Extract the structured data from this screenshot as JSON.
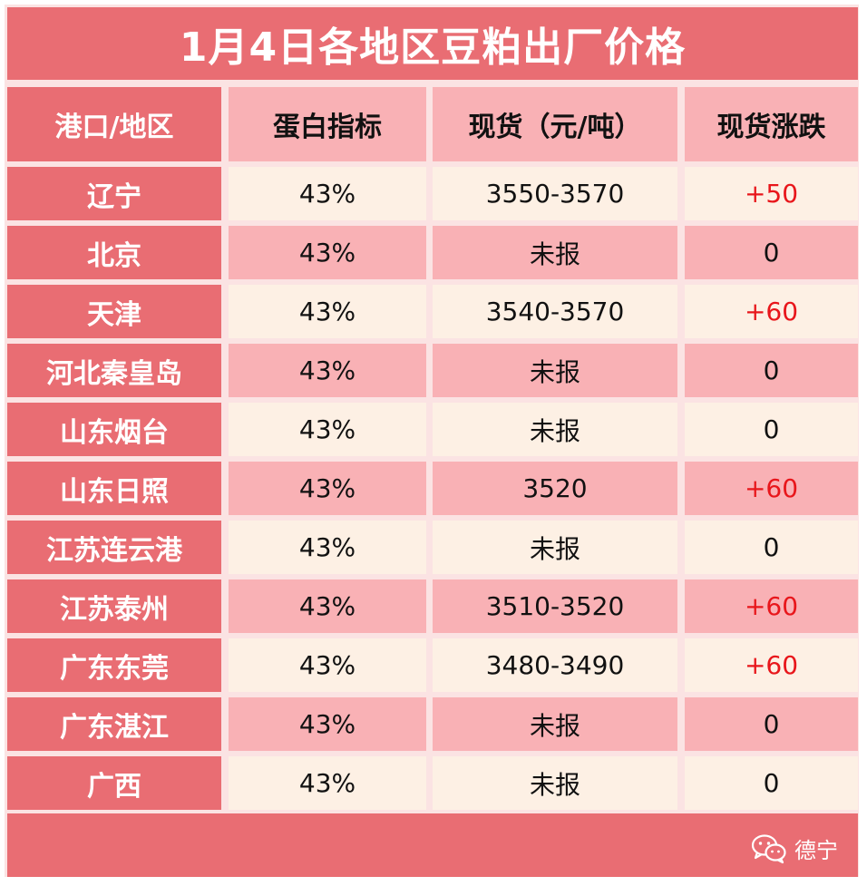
{
  "title": "1月4日各地区豆粕出厂价格",
  "headers": [
    "港口/地区",
    "蛋白指标",
    "现货（元/吨）",
    "现货涨跌"
  ],
  "rows": [
    {
      "region": "辽宁",
      "protein": "43%",
      "price": "3550-3570",
      "change": "+50"
    },
    {
      "region": "北京",
      "protein": "43%",
      "price": "未报",
      "change": "0"
    },
    {
      "region": "天津",
      "protein": "43%",
      "price": "3540-3570",
      "change": "+60"
    },
    {
      "region": "河北秦皇岛",
      "protein": "43%",
      "price": "未报",
      "change": "0"
    },
    {
      "region": "山东烟台",
      "protein": "43%",
      "price": "未报",
      "change": "0"
    },
    {
      "region": "山东日照",
      "protein": "43%",
      "price": "3520",
      "change": "+60"
    },
    {
      "region": "江苏连云港",
      "protein": "43%",
      "price": "未报",
      "change": "0"
    },
    {
      "region": "江苏泰州",
      "protein": "43%",
      "price": "3510-3520",
      "change": "+60"
    },
    {
      "region": "广东东莞",
      "protein": "43%",
      "price": "3480-3490",
      "change": "+60"
    },
    {
      "region": "广东湛江",
      "protein": "43%",
      "price": "未报",
      "change": "0"
    },
    {
      "region": "广西",
      "protein": "43%",
      "price": "未报",
      "change": "0"
    }
  ],
  "watermark": {
    "icon": "wechat-icon",
    "label": "德宁"
  },
  "colors": {
    "accent": "#e96d73",
    "pink": "#f9b1b5",
    "light": "#fdf0e4",
    "up": "#e8161b"
  }
}
